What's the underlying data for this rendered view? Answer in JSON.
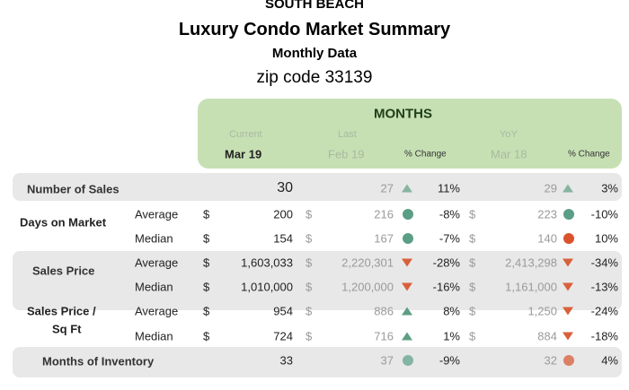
{
  "title": {
    "line1": "SOUTH BEACH",
    "line2": "Luxury Condo Market Summary",
    "line3": "Monthly Data",
    "line4": "zip code 33139"
  },
  "header": {
    "group": "MONTHS",
    "current_label": "Current",
    "last_label": "Last",
    "yoy_label": "YoY",
    "current_month": "Mar 19",
    "last_month": "Feb 19",
    "pct_change_1": "% Change",
    "yoy_month": "Mar 18",
    "pct_change_2": "% Change"
  },
  "colors": {
    "header_bg": "#c6e0b4",
    "up": "#5e9e83",
    "down": "#d9603b",
    "good_dot": "#5a9e86",
    "bad_dot": "#d9532c",
    "band": "#e8e8e8"
  },
  "sections": {
    "sales": {
      "label": "Number of Sales"
    },
    "dom": {
      "label": "Days on Market"
    },
    "price": {
      "label": "Sales Price"
    },
    "sqft": {
      "label1": "Sales Price /",
      "label2": "Sq Ft"
    },
    "inventory": {
      "label": "Months of Inventory"
    }
  },
  "rows": [
    {
      "sub": "",
      "cur_cur": "",
      "cur": "30",
      "last_cur": "",
      "last": "27",
      "last_icon": "triangle-up",
      "last_pct": "11%",
      "yoy_cur": "",
      "yoy": "29",
      "yoy_icon": "triangle-up",
      "yoy_pct": "3%"
    },
    {
      "sub": "Average",
      "cur_cur": "$",
      "cur": "200",
      "last_cur": "$",
      "last": "216",
      "last_icon": "circle-green",
      "last_pct": "-8%",
      "yoy_cur": "$",
      "yoy": "223",
      "yoy_icon": "circle-green",
      "yoy_pct": "-10%"
    },
    {
      "sub": "Median",
      "cur_cur": "$",
      "cur": "154",
      "last_cur": "$",
      "last": "167",
      "last_icon": "circle-green",
      "last_pct": "-7%",
      "yoy_cur": "$",
      "yoy": "140",
      "yoy_icon": "circle-red",
      "yoy_pct": "10%"
    },
    {
      "sub": "Average",
      "cur_cur": "$",
      "cur": "1,603,033",
      "last_cur": "$",
      "last": "2,220,301",
      "last_icon": "triangle-down",
      "last_pct": "-28%",
      "yoy_cur": "$",
      "yoy": "2,413,298",
      "yoy_icon": "triangle-down",
      "yoy_pct": "-34%"
    },
    {
      "sub": "Median",
      "cur_cur": "$",
      "cur": "1,010,000",
      "last_cur": "$",
      "last": "1,200,000",
      "last_icon": "triangle-down",
      "last_pct": "-16%",
      "yoy_cur": "$",
      "yoy": "1,161,000",
      "yoy_icon": "triangle-down",
      "yoy_pct": "-13%"
    },
    {
      "sub": "Average",
      "cur_cur": "$",
      "cur": "954",
      "last_cur": "$",
      "last": "886",
      "last_icon": "triangle-up",
      "last_pct": "8%",
      "yoy_cur": "$",
      "yoy": "1,250",
      "yoy_icon": "triangle-down",
      "yoy_pct": "-24%"
    },
    {
      "sub": "Median",
      "cur_cur": "$",
      "cur": "724",
      "last_cur": "$",
      "last": "716",
      "last_icon": "triangle-up",
      "last_pct": "1%",
      "yoy_cur": "$",
      "yoy": "884",
      "yoy_icon": "triangle-down",
      "yoy_pct": "-18%"
    },
    {
      "sub": "",
      "cur_cur": "",
      "cur": "33",
      "last_cur": "",
      "last": "37",
      "last_icon": "circle-green",
      "last_pct": "-9%",
      "yoy_cur": "",
      "yoy": "32",
      "yoy_icon": "circle-red",
      "yoy_pct": "4%"
    }
  ]
}
